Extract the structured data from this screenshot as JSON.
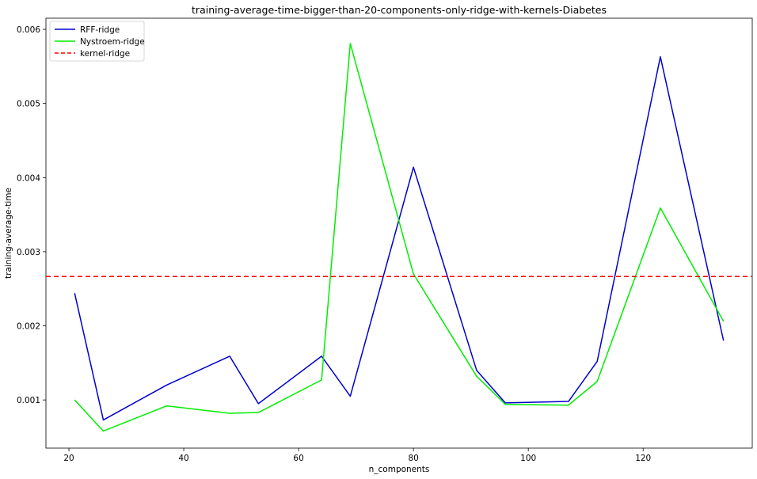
{
  "chart_data": {
    "type": "line",
    "title": "training-average-time-bigger-than-20-components-only-ridge-with-kernels-Diabetes",
    "xlabel": "n_components",
    "ylabel": "training-average-time",
    "xlim": [
      16,
      139
    ],
    "ylim": [
      0.00035,
      0.00615
    ],
    "xticks": [
      20,
      40,
      60,
      80,
      100,
      120
    ],
    "yticks": [
      0.001,
      0.002,
      0.003,
      0.004,
      0.005,
      0.006
    ],
    "xtick_labels": [
      "20",
      "40",
      "60",
      "80",
      "100",
      "120"
    ],
    "ytick_labels": [
      "0.001",
      "0.002",
      "0.003",
      "0.004",
      "0.005",
      "0.006"
    ],
    "grid": false,
    "legend_position": "top-left",
    "x": [
      21,
      26,
      37,
      48,
      53,
      64,
      69,
      80,
      91,
      96,
      107,
      112,
      123,
      134
    ],
    "series": [
      {
        "name": "RFF-ridge",
        "color": "#0000cc",
        "style": "solid",
        "values": [
          0.00244,
          0.00073,
          0.0012,
          0.00159,
          0.00095,
          0.00159,
          0.00105,
          0.00414,
          0.0014,
          0.00096,
          0.00098,
          0.00152,
          0.00563,
          0.0018
        ]
      },
      {
        "name": "Nystroem-ridge",
        "color": "#00ee00",
        "style": "solid",
        "values": [
          0.001,
          0.00058,
          0.00092,
          0.00082,
          0.00083,
          0.00127,
          0.00581,
          0.0027,
          0.00132,
          0.00094,
          0.00093,
          0.00125,
          0.00359,
          0.00206
        ]
      },
      {
        "name": "kernel-ridge",
        "color": "#ff0000",
        "style": "dashed",
        "constant": 0.002665
      }
    ]
  }
}
